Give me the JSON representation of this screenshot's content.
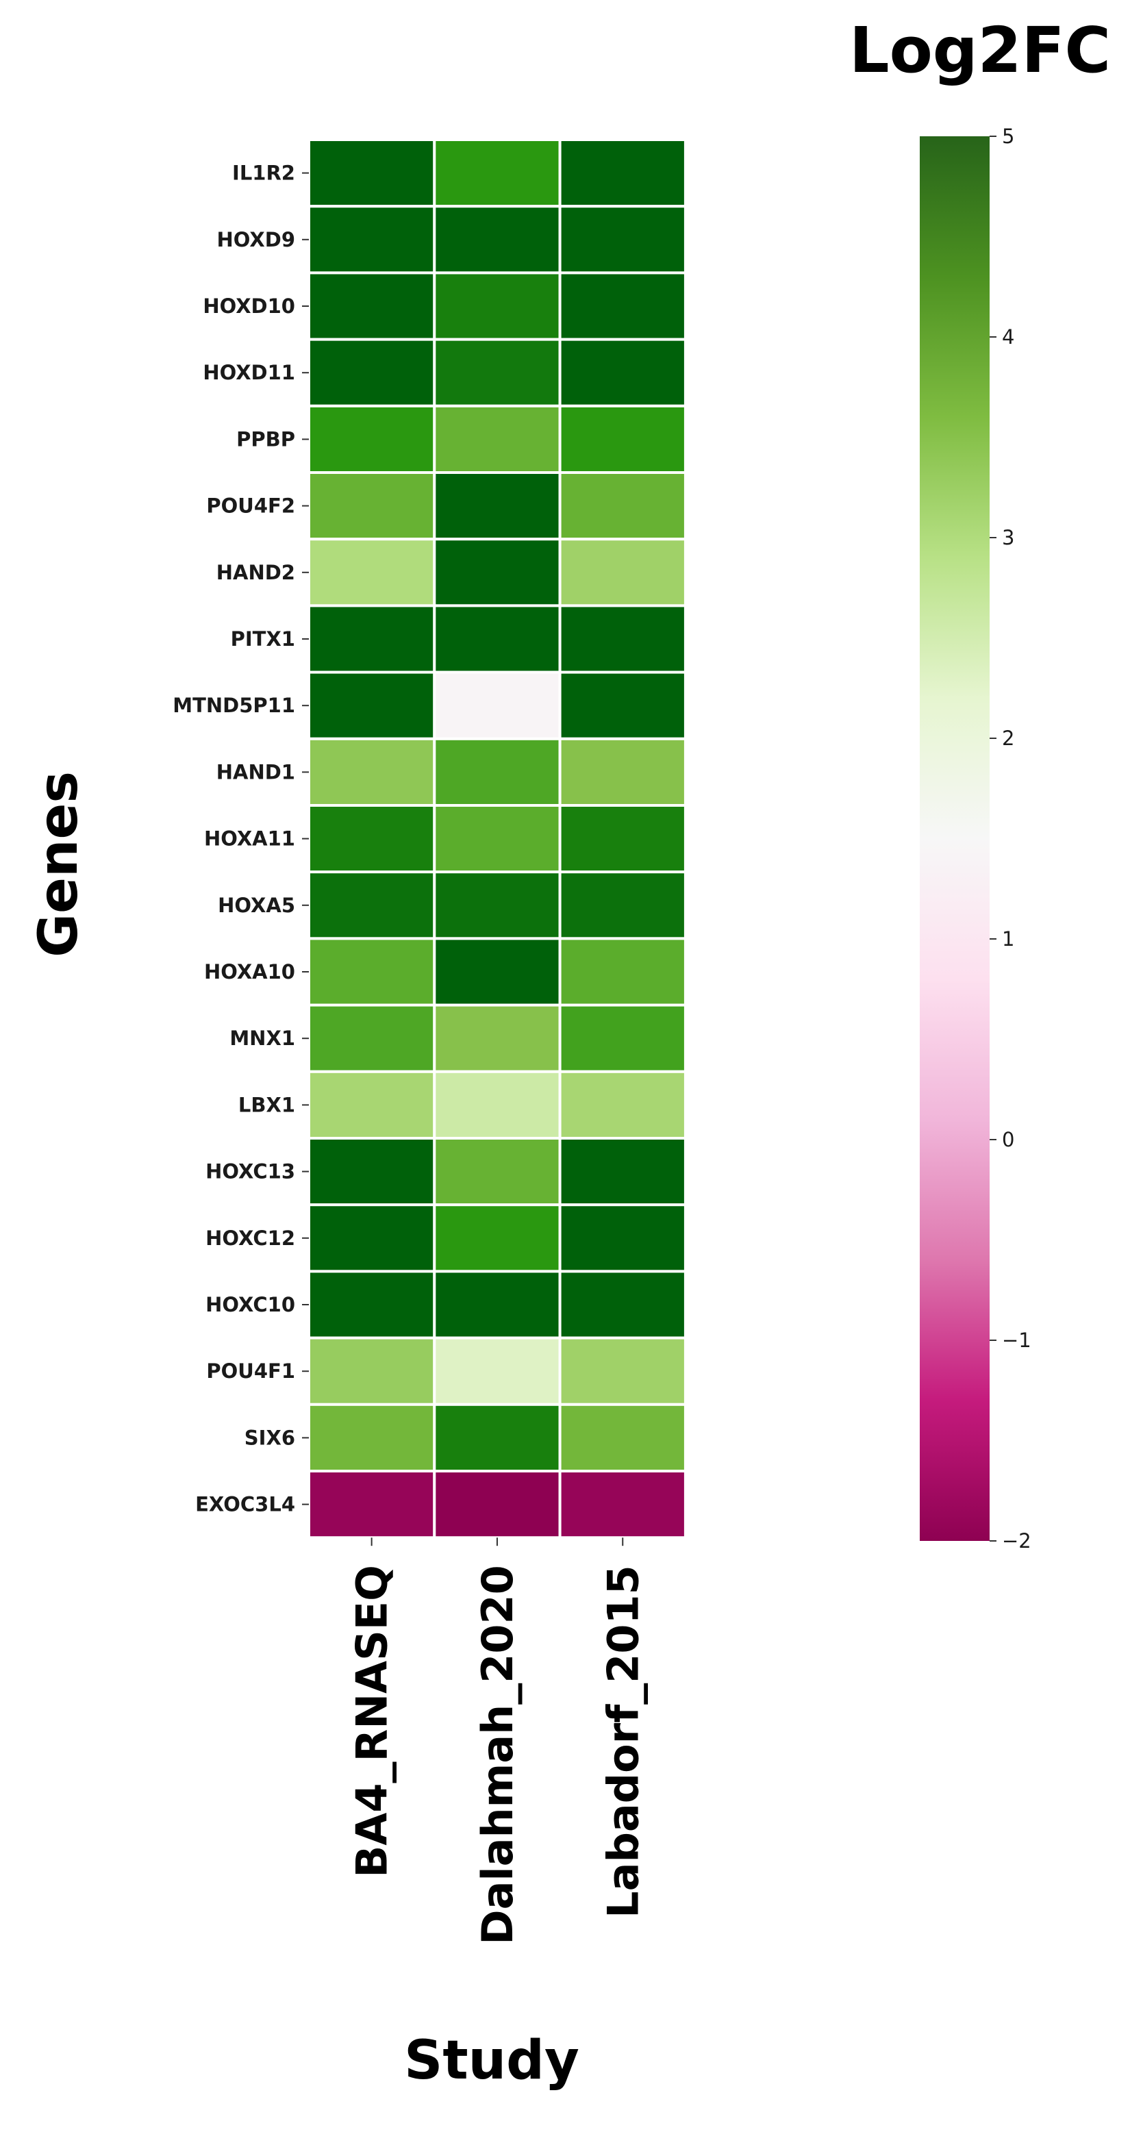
{
  "chart_data": {
    "type": "heatmap",
    "title": "",
    "xlabel": "Study",
    "ylabel": "Genes",
    "colorbar_title": "Log2FC",
    "colorbar_range": [
      -2,
      5
    ],
    "colorbar_ticks": [
      5,
      4,
      3,
      2,
      1,
      0,
      -1,
      -2
    ],
    "colormap": "PiYG",
    "columns": [
      "BA4_RNASEQ",
      "Dalahmah_2020",
      "Labadorf_2015"
    ],
    "rows": [
      "IL1R2",
      "HOXD9",
      "HOXD10",
      "HOXD11",
      "PPBP",
      "POU4F2",
      "HAND2",
      "PITX1",
      "MTND5P11",
      "HAND1",
      "HOXA11",
      "HOXA5",
      "HOXA10",
      "MNX1",
      "LBX1",
      "HOXC13",
      "HOXC12",
      "HOXC10",
      "POU4F1",
      "SIX6",
      "EXOC3L4"
    ],
    "values": [
      [
        5.0,
        4.3,
        5.0
      ],
      [
        5.0,
        5.0,
        5.0
      ],
      [
        5.0,
        4.6,
        5.0
      ],
      [
        5.0,
        4.7,
        5.0
      ],
      [
        4.3,
        3.8,
        4.3
      ],
      [
        3.8,
        5.0,
        3.8
      ],
      [
        3.0,
        5.0,
        3.2
      ],
      [
        5.0,
        5.0,
        5.0
      ],
      [
        5.0,
        1.4,
        5.0
      ],
      [
        3.4,
        4.0,
        3.5
      ],
      [
        4.6,
        3.9,
        4.6
      ],
      [
        4.8,
        4.8,
        4.8
      ],
      [
        3.9,
        5.0,
        3.9
      ],
      [
        4.0,
        3.5,
        4.1
      ],
      [
        3.1,
        2.6,
        3.1
      ],
      [
        5.0,
        3.8,
        5.0
      ],
      [
        5.0,
        4.3,
        5.0
      ],
      [
        5.0,
        5.0,
        5.0
      ],
      [
        3.3,
        2.3,
        3.2
      ],
      [
        3.7,
        4.6,
        3.7
      ],
      [
        -1.9,
        -2.0,
        -1.9
      ]
    ]
  }
}
